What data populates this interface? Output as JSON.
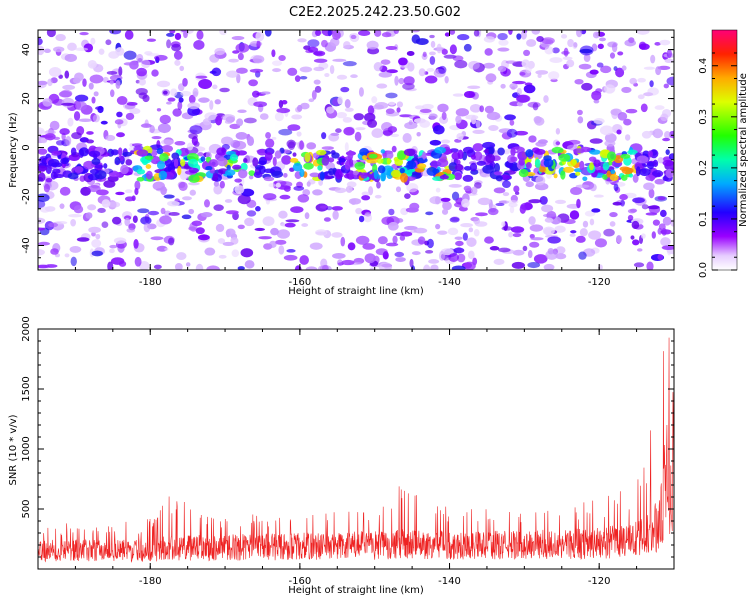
{
  "title": "C2E2.2025.242.23.50.G02",
  "chart_data": [
    {
      "type": "heatmap",
      "xlabel": "Height of straight line (km)",
      "ylabel": "Frequency (Hz)",
      "xlim": [
        -195,
        -110
      ],
      "ylim": [
        -50,
        48
      ],
      "xticks": [
        -180,
        -160,
        -140,
        -120
      ],
      "yticks": [
        -40,
        -20,
        0,
        20,
        40
      ],
      "band": {
        "center_hz": -7,
        "x_range": [
          -195,
          -110
        ],
        "hot_spots_x": [
          -180,
          -174,
          -168,
          -159,
          -150,
          -147,
          -142,
          -128,
          -124,
          -119,
          -117
        ]
      },
      "gaps_x": [
        -164,
        -136
      ],
      "colorbar": {
        "label": "Normalized spectral amplitude",
        "range": [
          0.0,
          0.47
        ],
        "ticks": [
          0.0,
          0.1,
          0.2,
          0.3,
          0.4
        ],
        "tick_labels": [
          "0.0",
          "0.1",
          "0.2",
          "0.3",
          "0.4"
        ]
      }
    },
    {
      "type": "line",
      "xlabel": "Height of straight line (km)",
      "ylabel": "SNR (10 * v/v)",
      "xlim": [
        -195,
        -110
      ],
      "ylim": [
        0,
        2000
      ],
      "xticks": [
        -180,
        -160,
        -140,
        -120
      ],
      "yticks": [
        500,
        1000,
        1500,
        2000
      ],
      "series": [
        {
          "name": "SNR",
          "color": "#ee2222",
          "envelope": {
            "x": [
              -195,
              -180,
              -178,
              -170,
              -160,
              -150,
              -148,
              -140,
              -130,
              -125,
              -120,
              -116,
              -114,
              -113,
              -112,
              -111.5,
              -111,
              -110.5,
              -110
            ],
            "baseline": [
              170,
              170,
              190,
              200,
              210,
              220,
              230,
              220,
              220,
              230,
              240,
              260,
              300,
              340,
              420,
              560,
              900,
              800,
              600
            ],
            "peak": [
              380,
              420,
              620,
              460,
              470,
              500,
              760,
              520,
              480,
              520,
              600,
              700,
              1000,
              1200,
              1500,
              1900,
              2000,
              1900,
              1700
            ]
          }
        }
      ]
    }
  ],
  "colors": {
    "line": "#ee2222",
    "background": "#ffffff"
  }
}
